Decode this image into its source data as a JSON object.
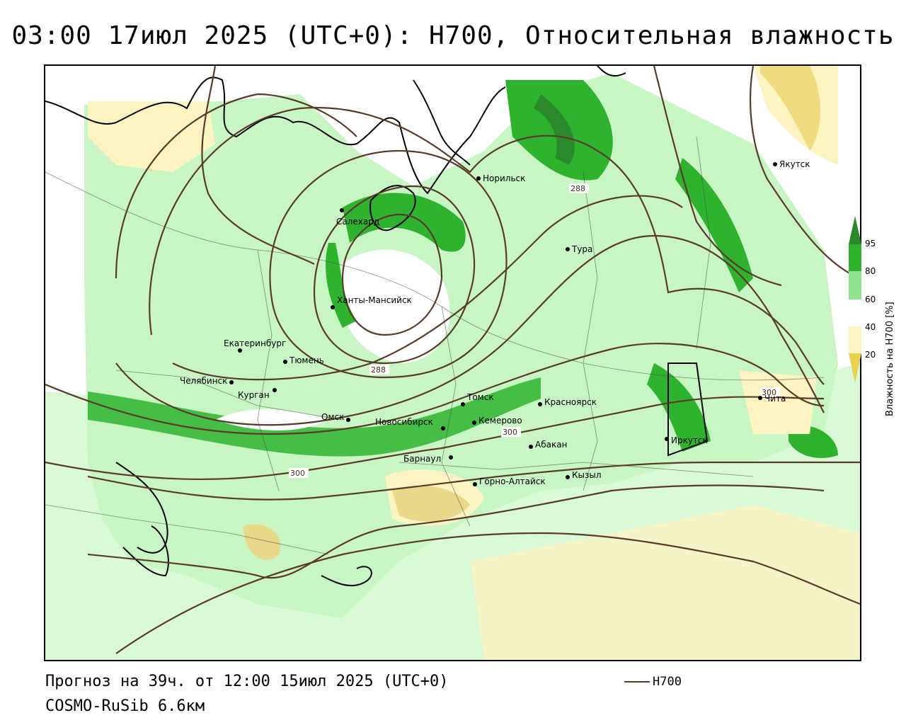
{
  "title": "03:00 17июл 2025 (UTC+0): H700, Относительная влажность",
  "footer": {
    "forecast": "Прогноз на 39ч. от 12:00 15июл 2025 (UTC+0)",
    "model": "COSMO-RuSib 6.6км"
  },
  "legend": {
    "label": "H700",
    "line_color": "#5a3a2a"
  },
  "colorbar": {
    "title": "Влажность на H700 [%]",
    "ticks": [
      "95",
      "80",
      "60",
      "40",
      "20"
    ],
    "colors": {
      "above_95": "#2a8a2a",
      "80_95": "#2fb32f",
      "60_80": "#8fe38f",
      "40_60": "#ffffff",
      "20_40": "#fbf3c0",
      "below_20": "#e8d050"
    }
  },
  "cities": [
    {
      "name": "Норильск"
    },
    {
      "name": "Якутск"
    },
    {
      "name": "Салехард"
    },
    {
      "name": "Тура"
    },
    {
      "name": "Ханты-Мансийск"
    },
    {
      "name": "Екатеринбург"
    },
    {
      "name": "Тюмень"
    },
    {
      "name": "Челябинск"
    },
    {
      "name": "Курган"
    },
    {
      "name": "Омск"
    },
    {
      "name": "Томск"
    },
    {
      "name": "Красноярск"
    },
    {
      "name": "Кемерово"
    },
    {
      "name": "Новосибирск"
    },
    {
      "name": "Абакан"
    },
    {
      "name": "Барнаул"
    },
    {
      "name": "Иркутск"
    },
    {
      "name": "Чита"
    },
    {
      "name": "Кызыл"
    },
    {
      "name": "Горно-Алтайск"
    }
  ],
  "contour_labels": [
    "288",
    "288",
    "300",
    "300",
    "300"
  ]
}
